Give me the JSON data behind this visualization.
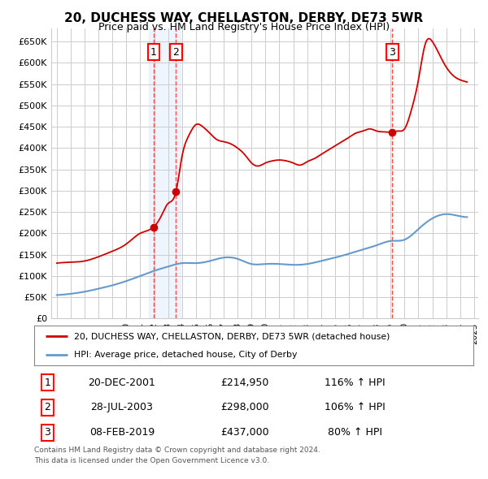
{
  "title": "20, DUCHESS WAY, CHELLASTON, DERBY, DE73 5WR",
  "subtitle": "Price paid vs. HM Land Registry's House Price Index (HPI)",
  "legend_line1": "20, DUCHESS WAY, CHELLASTON, DERBY, DE73 5WR (detached house)",
  "legend_line2": "HPI: Average price, detached house, City of Derby",
  "footer1": "Contains HM Land Registry data © Crown copyright and database right 2024.",
  "footer2": "This data is licensed under the Open Government Licence v3.0.",
  "ylim": [
    0,
    680000
  ],
  "yticks": [
    0,
    50000,
    100000,
    150000,
    200000,
    250000,
    300000,
    350000,
    400000,
    450000,
    500000,
    550000,
    600000,
    650000
  ],
  "ytick_labels": [
    "£0",
    "£50K",
    "£100K",
    "£150K",
    "£200K",
    "£250K",
    "£300K",
    "£350K",
    "£400K",
    "£450K",
    "£500K",
    "£550K",
    "£600K",
    "£650K"
  ],
  "transactions": [
    {
      "num": 1,
      "date": "20-DEC-2001",
      "price": 214950,
      "hpi_pct": "116%",
      "direction": "↑"
    },
    {
      "num": 2,
      "date": "28-JUL-2003",
      "price": 298000,
      "hpi_pct": "106%",
      "direction": "↑"
    },
    {
      "num": 3,
      "date": "08-FEB-2019",
      "price": 437000,
      "hpi_pct": "80%",
      "direction": "↑"
    }
  ],
  "transaction_years": [
    2001.97,
    2003.57,
    2019.11
  ],
  "transaction_prices": [
    214950,
    298000,
    437000
  ],
  "red_line_color": "#cc0000",
  "blue_line_color": "#6699cc",
  "marker_color": "#cc0000",
  "vline_color": "#ff4444",
  "grid_color": "#cccccc",
  "background_color": "#ffffff"
}
